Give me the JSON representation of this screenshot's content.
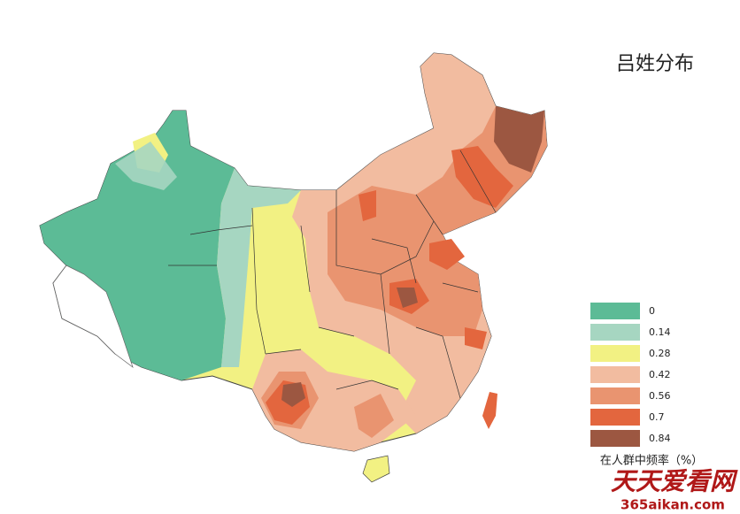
{
  "title": "吕姓分布",
  "legend": {
    "title": "在人群中频率（%）",
    "items": [
      {
        "value": 0,
        "color": "#5cbb96"
      },
      {
        "value": 0.14,
        "color": "#a6d6c1"
      },
      {
        "value": 0.28,
        "color": "#f2f183"
      },
      {
        "value": 0.42,
        "color": "#f2bca0"
      },
      {
        "value": 0.56,
        "color": "#e99470"
      },
      {
        "value": 0.7,
        "color": "#e3663e"
      },
      {
        "value": 0.84,
        "color": "#9c5741"
      }
    ]
  },
  "watermark": {
    "name": "天天爱看网",
    "url": "365aikan.com"
  }
}
